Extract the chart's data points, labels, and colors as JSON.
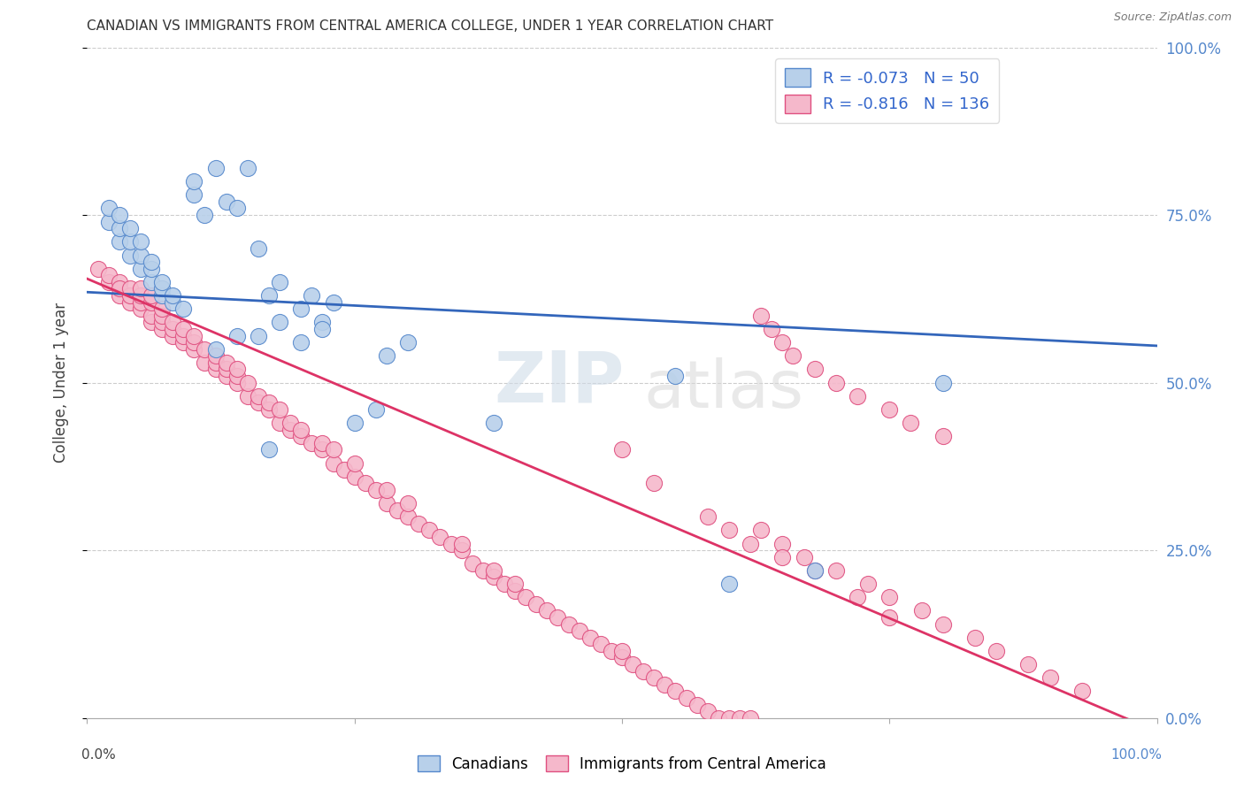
{
  "title": "CANADIAN VS IMMIGRANTS FROM CENTRAL AMERICA COLLEGE, UNDER 1 YEAR CORRELATION CHART",
  "source": "Source: ZipAtlas.com",
  "ylabel": "College, Under 1 year",
  "ytick_labels": [
    "0.0%",
    "25.0%",
    "50.0%",
    "75.0%",
    "100.0%"
  ],
  "xlim": [
    0,
    1
  ],
  "ylim": [
    0,
    1
  ],
  "blue_R": "-0.073",
  "blue_N": "50",
  "pink_R": "-0.816",
  "pink_N": "136",
  "legend_label_blue": "Canadians",
  "legend_label_pink": "Immigrants from Central America",
  "blue_fill_color": "#b8d0ea",
  "pink_fill_color": "#f5b8cb",
  "blue_edge_color": "#5588cc",
  "pink_edge_color": "#e05080",
  "blue_line_color": "#3366bb",
  "pink_line_color": "#dd3366",
  "watermark_zip": "ZIP",
  "watermark_atlas": "atlas",
  "blue_line_x0": 0.0,
  "blue_line_y0": 0.635,
  "blue_line_x1": 1.0,
  "blue_line_y1": 0.555,
  "pink_line_x0": 0.0,
  "pink_line_y0": 0.655,
  "pink_line_x1": 1.0,
  "pink_line_y1": -0.02,
  "blue_scatter_x": [
    0.02,
    0.02,
    0.03,
    0.03,
    0.03,
    0.04,
    0.04,
    0.04,
    0.05,
    0.05,
    0.05,
    0.06,
    0.06,
    0.06,
    0.07,
    0.07,
    0.07,
    0.08,
    0.08,
    0.09,
    0.1,
    0.1,
    0.11,
    0.12,
    0.13,
    0.14,
    0.15,
    0.16,
    0.17,
    0.18,
    0.2,
    0.21,
    0.22,
    0.23,
    0.16,
    0.18,
    0.2,
    0.22,
    0.12,
    0.14,
    0.28,
    0.3,
    0.25,
    0.27,
    0.17,
    0.38,
    0.55,
    0.6,
    0.68,
    0.8
  ],
  "blue_scatter_y": [
    0.74,
    0.76,
    0.71,
    0.73,
    0.75,
    0.69,
    0.71,
    0.73,
    0.67,
    0.69,
    0.71,
    0.65,
    0.67,
    0.68,
    0.63,
    0.64,
    0.65,
    0.62,
    0.63,
    0.61,
    0.78,
    0.8,
    0.75,
    0.82,
    0.77,
    0.76,
    0.82,
    0.7,
    0.63,
    0.65,
    0.61,
    0.63,
    0.59,
    0.62,
    0.57,
    0.59,
    0.56,
    0.58,
    0.55,
    0.57,
    0.54,
    0.56,
    0.44,
    0.46,
    0.4,
    0.44,
    0.51,
    0.2,
    0.22,
    0.5
  ],
  "pink_scatter_x": [
    0.01,
    0.02,
    0.02,
    0.03,
    0.03,
    0.03,
    0.04,
    0.04,
    0.04,
    0.05,
    0.05,
    0.05,
    0.05,
    0.06,
    0.06,
    0.06,
    0.06,
    0.07,
    0.07,
    0.07,
    0.07,
    0.08,
    0.08,
    0.08,
    0.09,
    0.09,
    0.09,
    0.1,
    0.1,
    0.1,
    0.11,
    0.11,
    0.12,
    0.12,
    0.12,
    0.13,
    0.13,
    0.13,
    0.14,
    0.14,
    0.14,
    0.15,
    0.15,
    0.16,
    0.16,
    0.17,
    0.17,
    0.18,
    0.18,
    0.19,
    0.19,
    0.2,
    0.2,
    0.21,
    0.22,
    0.22,
    0.23,
    0.23,
    0.24,
    0.25,
    0.25,
    0.26,
    0.27,
    0.28,
    0.28,
    0.29,
    0.3,
    0.3,
    0.31,
    0.32,
    0.33,
    0.34,
    0.35,
    0.35,
    0.36,
    0.37,
    0.38,
    0.38,
    0.39,
    0.4,
    0.4,
    0.41,
    0.42,
    0.43,
    0.44,
    0.45,
    0.46,
    0.47,
    0.48,
    0.49,
    0.5,
    0.5,
    0.51,
    0.52,
    0.53,
    0.54,
    0.55,
    0.56,
    0.57,
    0.58,
    0.59,
    0.6,
    0.61,
    0.62,
    0.63,
    0.64,
    0.65,
    0.66,
    0.68,
    0.7,
    0.72,
    0.75,
    0.77,
    0.8,
    0.63,
    0.65,
    0.67,
    0.7,
    0.73,
    0.75,
    0.78,
    0.8,
    0.83,
    0.85,
    0.88,
    0.9,
    0.93,
    0.53,
    0.58,
    0.6,
    0.62,
    0.65,
    0.68,
    0.72,
    0.75,
    0.5
  ],
  "pink_scatter_y": [
    0.67,
    0.65,
    0.66,
    0.63,
    0.65,
    0.64,
    0.62,
    0.63,
    0.64,
    0.61,
    0.62,
    0.63,
    0.64,
    0.59,
    0.6,
    0.62,
    0.63,
    0.58,
    0.59,
    0.6,
    0.61,
    0.57,
    0.58,
    0.59,
    0.56,
    0.57,
    0.58,
    0.55,
    0.56,
    0.57,
    0.53,
    0.55,
    0.52,
    0.53,
    0.54,
    0.51,
    0.52,
    0.53,
    0.5,
    0.51,
    0.52,
    0.48,
    0.5,
    0.47,
    0.48,
    0.46,
    0.47,
    0.44,
    0.46,
    0.43,
    0.44,
    0.42,
    0.43,
    0.41,
    0.4,
    0.41,
    0.38,
    0.4,
    0.37,
    0.36,
    0.38,
    0.35,
    0.34,
    0.32,
    0.34,
    0.31,
    0.3,
    0.32,
    0.29,
    0.28,
    0.27,
    0.26,
    0.25,
    0.26,
    0.23,
    0.22,
    0.21,
    0.22,
    0.2,
    0.19,
    0.2,
    0.18,
    0.17,
    0.16,
    0.15,
    0.14,
    0.13,
    0.12,
    0.11,
    0.1,
    0.09,
    0.1,
    0.08,
    0.07,
    0.06,
    0.05,
    0.04,
    0.03,
    0.02,
    0.01,
    0.0,
    0.0,
    0.0,
    0.0,
    0.6,
    0.58,
    0.56,
    0.54,
    0.52,
    0.5,
    0.48,
    0.46,
    0.44,
    0.42,
    0.28,
    0.26,
    0.24,
    0.22,
    0.2,
    0.18,
    0.16,
    0.14,
    0.12,
    0.1,
    0.08,
    0.06,
    0.04,
    0.35,
    0.3,
    0.28,
    0.26,
    0.24,
    0.22,
    0.18,
    0.15,
    0.4
  ]
}
